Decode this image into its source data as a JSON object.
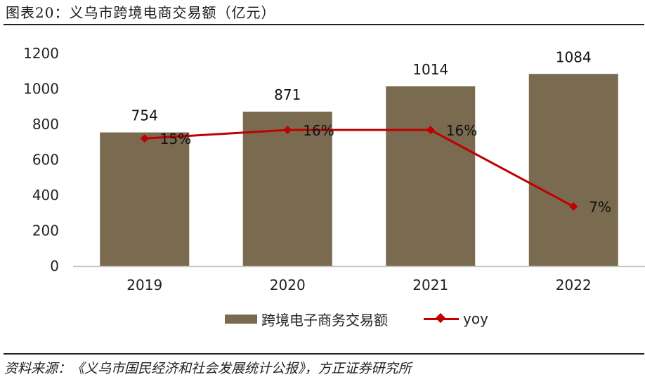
{
  "header": {
    "title": "图表20：义乌市跨境电商交易额（亿元）"
  },
  "footer": {
    "source": "资料来源：《义乌市国民经济和社会发展统计公报》，方正证券研究所"
  },
  "legend": {
    "bar_label": "跨境电子商务交易额",
    "line_label": "yoy"
  },
  "colors": {
    "bar": "#7a6a50",
    "line": "#c00000",
    "axis": "#bfbfbf",
    "text": "#222222"
  },
  "chart_data": {
    "type": "bar",
    "categories": [
      "2019",
      "2020",
      "2021",
      "2022"
    ],
    "series": [
      {
        "name": "跨境电子商务交易额",
        "type": "bar",
        "values": [
          754,
          871,
          1014,
          1084
        ],
        "labels": [
          "754",
          "871",
          "1014",
          "1084"
        ]
      },
      {
        "name": "yoy",
        "type": "line",
        "values": [
          15,
          16,
          16,
          7
        ],
        "labels": [
          "15%",
          "16%",
          "16%",
          "7%"
        ]
      }
    ],
    "ylim": [
      0,
      1200
    ],
    "yticks": [
      0,
      200,
      400,
      600,
      800,
      1000,
      1200
    ],
    "secondary_ylim": [
      0,
      25
    ],
    "grid": false,
    "legend_position": "bottom"
  }
}
